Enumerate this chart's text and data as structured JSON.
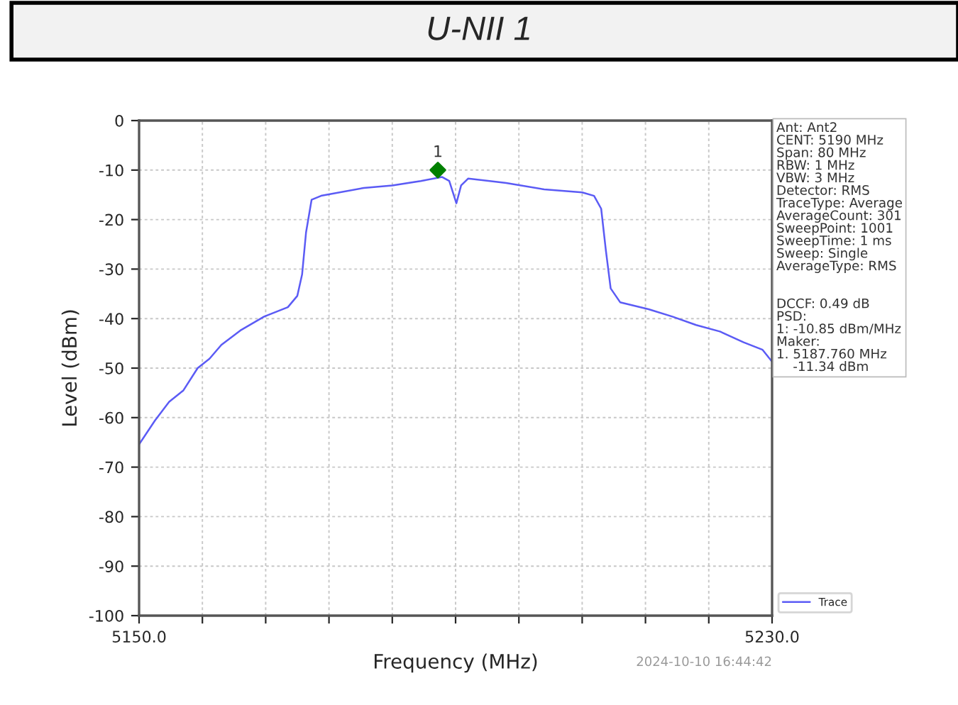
{
  "chart_data": {
    "type": "line",
    "title": "U-NII 1",
    "xlabel": "Frequency (MHz)",
    "ylabel": "Level (dBm)",
    "xlim": [
      5150,
      5230
    ],
    "xticks": [
      {
        "value": 5150,
        "label": "5150.0"
      },
      {
        "value": 5158,
        "label": null
      },
      {
        "value": 5166,
        "label": null
      },
      {
        "value": 5174,
        "label": null
      },
      {
        "value": 5182,
        "label": null
      },
      {
        "value": 5190,
        "label": null
      },
      {
        "value": 5198,
        "label": null
      },
      {
        "value": 5206,
        "label": null
      },
      {
        "value": 5214,
        "label": null
      },
      {
        "value": 5222,
        "label": null
      },
      {
        "value": 5230,
        "label": "5230.0"
      }
    ],
    "ylim": [
      -100,
      0
    ],
    "yticks": [
      0,
      -10,
      -20,
      -30,
      -40,
      -50,
      -60,
      -70,
      -80,
      -90,
      -100
    ],
    "grid": true,
    "legend": "bottom right",
    "series": [
      {
        "name": "Trace",
        "color": "#5b5bf5",
        "x": [
          5150,
          5152,
          5153.8,
          5155.6,
          5157.4,
          5158.9,
          5160.4,
          5162.8,
          5165.8,
          5168.8,
          5170,
          5170.6,
          5171.1,
          5171.8,
          5173,
          5178.4,
          5182,
          5185.6,
          5188.3,
          5189.2,
          5190.1,
          5190.7,
          5191.6,
          5196.4,
          5201.2,
          5206,
          5207.5,
          5208.4,
          5209,
          5209.6,
          5210.8,
          5214.4,
          5217.4,
          5220.4,
          5223.4,
          5226.4,
          5228.8,
          5230
        ],
        "values": [
          -65.4,
          -60.6,
          -56.8,
          -54.5,
          -50,
          -48.1,
          -45.3,
          -42.4,
          -39.6,
          -37.7,
          -35.4,
          -31.1,
          -22.6,
          -16,
          -15.2,
          -13.6,
          -13.1,
          -12.2,
          -11.4,
          -12.2,
          -16.7,
          -13.1,
          -11.7,
          -12.6,
          -13.9,
          -14.5,
          -15.2,
          -17.8,
          -26.3,
          -33.9,
          -36.7,
          -38.1,
          -39.6,
          -41.3,
          -42.6,
          -44.8,
          -46.3,
          -48.7
        ]
      },
      {
        "type": "scatter",
        "color": "#008000",
        "marker": "diamond",
        "x": [
          5187.76
        ],
        "values": [
          -10
        ]
      }
    ],
    "annotations": [
      "Ant: Ant2\nCENT: 5190 MHz\nSpan: 80 MHz\nRBW: 1 MHz\nVBW: 3 MHz\nDetector: RMS\nTraceType: Average\nAverageCount: 301\nSweepPoint: 1001\nSweepTime: 1 ms\nSweep: Single\nAverageType: RMS\n\n\nDCCF: 0.49 dB\nPSD:\n1: -10.85 dBm/MHz\nMaker:\n1. 5187.760 MHz\n    -11.34 dBm",
      "2024-10-10 16:44:42",
      {
        "text": "1",
        "x": 5187.76,
        "y": -10
      }
    ]
  }
}
